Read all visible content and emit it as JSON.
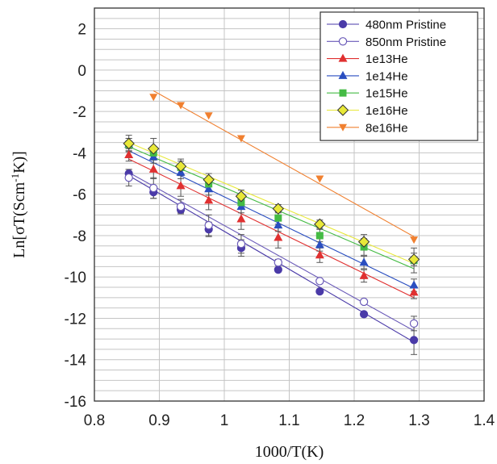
{
  "chart_data": {
    "type": "scatter",
    "xlabel": "1000/T(K)",
    "ylabel_parts": [
      "Ln[σT(Scm",
      "-1",
      "K)]"
    ],
    "xlim": [
      0.8,
      1.4
    ],
    "ylim": [
      -16,
      3
    ],
    "x_ticks": [
      0.8,
      0.9,
      1.0,
      1.1,
      1.2,
      1.3,
      1.4
    ],
    "x_tick_labels": [
      "0.8",
      "0.9",
      "1",
      "1.1",
      "1.2",
      "1.3",
      "1.4"
    ],
    "y_ticks": [
      -16,
      -14,
      -12,
      -10,
      -8,
      -6,
      -4,
      -2,
      0,
      2
    ],
    "y_tick_labels": [
      "-16",
      "-14",
      "-12",
      "-10",
      "-8",
      "-6",
      "-4",
      "-2",
      "0",
      "2"
    ],
    "y_minor_step": 0.5,
    "grid": true,
    "legend_position": "top-right",
    "series": [
      {
        "name": "480nm Pristine",
        "color": "#4a3aa8",
        "marker": "circle-filled",
        "x": [
          0.853,
          0.891,
          0.933,
          0.976,
          1.026,
          1.083,
          1.147,
          1.215,
          1.292
        ],
        "y": [
          -5.0,
          -5.9,
          -6.75,
          -7.7,
          -8.6,
          -9.65,
          -10.7,
          -11.8,
          -13.05
        ],
        "err": [
          0.2,
          0.3,
          0.15,
          0.35,
          0.4,
          0.1,
          0.1,
          0.1,
          0.7
        ],
        "fit": [
          [
            0.853,
            -5.1
          ],
          [
            1.292,
            -13.15
          ]
        ]
      },
      {
        "name": "850nm Pristine",
        "color": "#6a5ab8",
        "marker": "circle-open",
        "x": [
          0.853,
          0.891,
          0.933,
          0.976,
          1.026,
          1.083,
          1.147,
          1.215,
          1.292
        ],
        "y": [
          -5.2,
          -5.7,
          -6.6,
          -7.5,
          -8.4,
          -9.3,
          -10.2,
          -11.2,
          -12.25
        ],
        "err": [
          0.4,
          0.5,
          0.35,
          0.5,
          0.45,
          0.15,
          0.1,
          0.1,
          0.35
        ],
        "fit": [
          [
            0.853,
            -4.95
          ],
          [
            1.292,
            -12.6
          ]
        ]
      },
      {
        "name": "1e13He",
        "color": "#e03030",
        "marker": "triangle-up",
        "x": [
          0.853,
          0.891,
          0.933,
          0.976,
          1.026,
          1.083,
          1.147,
          1.215,
          1.292
        ],
        "y": [
          -4.1,
          -4.8,
          -5.6,
          -6.3,
          -7.2,
          -8.1,
          -8.95,
          -9.95,
          -10.75
        ],
        "err": [
          0.3,
          0.45,
          0.5,
          0.45,
          0.5,
          0.5,
          0.35,
          0.3,
          0.3
        ],
        "fit": [
          [
            0.853,
            -4.3
          ],
          [
            1.292,
            -11.0
          ]
        ]
      },
      {
        "name": "1e14He",
        "color": "#2a4ec0",
        "marker": "triangle-up",
        "x": [
          0.853,
          0.891,
          0.933,
          0.976,
          1.026,
          1.083,
          1.147,
          1.215,
          1.292
        ],
        "y": [
          -3.6,
          -4.2,
          -4.95,
          -5.75,
          -6.6,
          -7.5,
          -8.45,
          -9.3,
          -10.4
        ],
        "err": [
          0.3,
          0.3,
          0.3,
          0.3,
          0.3,
          0.3,
          0.3,
          0.3,
          0.3
        ],
        "fit": [
          [
            0.853,
            -3.9
          ],
          [
            1.292,
            -10.55
          ]
        ]
      },
      {
        "name": "1e15He",
        "color": "#44bb44",
        "marker": "square",
        "x": [
          0.853,
          0.891,
          0.933,
          0.976,
          1.026,
          1.083,
          1.147,
          1.215,
          1.292
        ],
        "y": [
          -3.6,
          -4.0,
          -4.7,
          -5.5,
          -6.4,
          -7.15,
          -8.0,
          -8.55,
          -9.2
        ],
        "err": [
          0.3,
          0.3,
          0.3,
          0.3,
          0.3,
          0.3,
          0.3,
          0.4,
          0.6
        ],
        "fit": [
          [
            0.853,
            -3.7
          ],
          [
            1.292,
            -9.6
          ]
        ]
      },
      {
        "name": "1e16He",
        "color": "#e8e838",
        "stroke": "#333333",
        "marker": "diamond",
        "x": [
          0.853,
          0.891,
          0.933,
          0.976,
          1.026,
          1.083,
          1.147,
          1.215,
          1.292
        ],
        "y": [
          -3.55,
          -3.8,
          -4.65,
          -5.3,
          -6.1,
          -6.7,
          -7.45,
          -8.3,
          -9.15
        ],
        "err": [
          0.4,
          0.5,
          0.35,
          0.3,
          0.3,
          0.2,
          0.2,
          0.35,
          0.3
        ],
        "fit": [
          [
            0.853,
            -3.5
          ],
          [
            1.292,
            -9.35
          ]
        ]
      },
      {
        "name": "8e16He",
        "color": "#f08030",
        "marker": "triangle-down",
        "x": [
          0.891,
          0.933,
          0.976,
          1.026,
          1.147,
          1.292
        ],
        "y": [
          -1.3,
          -1.7,
          -2.2,
          -3.3,
          -5.25,
          -8.2
        ],
        "err": [
          0,
          0,
          0,
          0,
          0,
          0
        ],
        "fit": [
          [
            0.891,
            -1.0
          ],
          [
            1.292,
            -8.05
          ]
        ]
      }
    ]
  }
}
